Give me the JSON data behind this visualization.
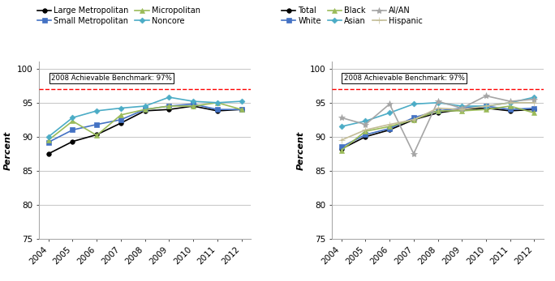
{
  "years": [
    2004,
    2005,
    2006,
    2007,
    2008,
    2009,
    2010,
    2011,
    2012
  ],
  "benchmark": 97.0,
  "benchmark_label": "2008 Achievable Benchmark: 97%",
  "left_series": [
    {
      "label": "Large Metropolitan",
      "values": [
        87.5,
        89.3,
        90.3,
        92.0,
        93.8,
        94.0,
        94.5,
        93.8,
        94.0
      ],
      "color": "#000000",
      "marker": "o"
    },
    {
      "label": "Small Metropolitan",
      "values": [
        89.2,
        91.0,
        91.8,
        92.5,
        94.0,
        94.5,
        94.8,
        94.0,
        94.0
      ],
      "color": "#4472C4",
      "marker": "s"
    },
    {
      "label": "Micropolitan",
      "values": [
        89.5,
        92.3,
        90.2,
        93.2,
        94.0,
        94.5,
        94.5,
        95.0,
        94.0
      ],
      "color": "#9BBB59",
      "marker": "^"
    },
    {
      "label": "Noncore",
      "values": [
        90.0,
        92.8,
        93.8,
        94.2,
        94.5,
        95.8,
        95.2,
        95.0,
        95.2
      ],
      "color": "#4BACC6",
      "marker": "D"
    }
  ],
  "right_series": [
    {
      "label": "Total",
      "values": [
        88.2,
        90.0,
        91.0,
        92.5,
        93.5,
        94.0,
        94.2,
        93.8,
        94.0
      ],
      "color": "#000000",
      "marker": "o"
    },
    {
      "label": "White",
      "values": [
        88.5,
        90.3,
        91.2,
        92.8,
        93.8,
        94.2,
        94.5,
        94.0,
        94.2
      ],
      "color": "#4472C4",
      "marker": "s"
    },
    {
      "label": "Black",
      "values": [
        88.0,
        90.8,
        91.5,
        92.5,
        93.8,
        93.8,
        94.0,
        94.5,
        93.5
      ],
      "color": "#9BBB59",
      "marker": "^"
    },
    {
      "label": "Asian",
      "values": [
        91.5,
        92.3,
        93.5,
        94.8,
        95.0,
        94.5,
        94.5,
        95.0,
        95.8
      ],
      "color": "#4BACC6",
      "marker": "D"
    },
    {
      "label": "AI/AN",
      "values": [
        92.8,
        91.8,
        94.8,
        87.5,
        95.2,
        94.2,
        96.0,
        95.2,
        95.5
      ],
      "color": "#A5A5A5",
      "marker": "*"
    },
    {
      "label": "Hispanic",
      "values": [
        89.5,
        91.0,
        91.8,
        92.5,
        94.2,
        94.0,
        94.5,
        95.0,
        95.0
      ],
      "color": "#C4BD97",
      "marker": "+"
    }
  ],
  "ylim": [
    75,
    101
  ],
  "yticks": [
    75,
    80,
    85,
    90,
    95,
    100
  ],
  "ylabel": "Percent",
  "bg_color": "#FFFFFF",
  "grid_color": "#BBBBBB",
  "legend_fontsize": 7.0,
  "axis_fontsize": 8,
  "tick_fontsize": 7.5,
  "ylabel_color": "#000000"
}
